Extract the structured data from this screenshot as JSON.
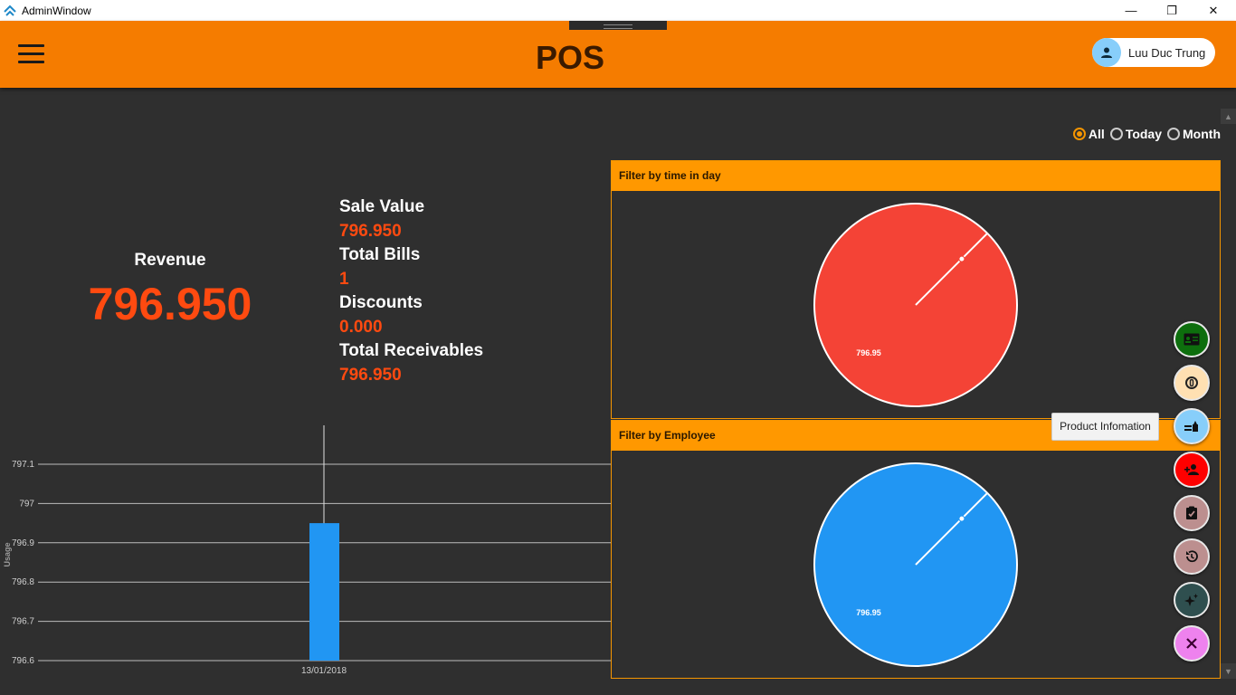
{
  "window": {
    "title": "AdminWindow",
    "minimize": "—",
    "restore": "❐",
    "close": "✕"
  },
  "header": {
    "title": "POS",
    "user_name": "Luu Duc Trung"
  },
  "filter": {
    "options": [
      {
        "label": "All",
        "checked": true
      },
      {
        "label": "Today",
        "checked": false
      },
      {
        "label": "Month",
        "checked": false
      }
    ]
  },
  "revenue": {
    "label": "Revenue",
    "value": "796.950"
  },
  "stats": {
    "sale_value_label": "Sale Value",
    "sale_value": "796.950",
    "total_bills_label": "Total Bills",
    "total_bills": "1",
    "discounts_label": "Discounts",
    "discounts": "0.000",
    "total_receivables_label": "Total Receivables",
    "total_receivables": "796.950"
  },
  "panels": {
    "time_header": "Filter by time in day",
    "employee_header": "Filter by Employee"
  },
  "tooltip": {
    "text": "Product Infomation"
  },
  "fabs": [
    {
      "icon": "id-card-icon",
      "color": "#0d6e0d"
    },
    {
      "icon": "coin-icon",
      "color": "#ffe0b2"
    },
    {
      "icon": "product-icon",
      "color": "#87cefa"
    },
    {
      "icon": "add-user-icon",
      "color": "#ff0000"
    },
    {
      "icon": "checklist-icon",
      "color": "#bc8f8f"
    },
    {
      "icon": "history-icon",
      "color": "#bc8f8f"
    },
    {
      "icon": "sparkle-icon",
      "color": "#2f4f4f"
    },
    {
      "icon": "close-icon",
      "color": "#ee82ee"
    }
  ],
  "chart_data": [
    {
      "type": "bar",
      "categories": [
        "13/01/2018"
      ],
      "values": [
        796.95
      ],
      "ylabel": "Usage",
      "ylim": [
        796.6,
        797.1
      ],
      "yticks": [
        "797.1",
        "797",
        "796.9",
        "796.8",
        "796.7",
        "796.6"
      ],
      "color": "#2196f3",
      "grid": true
    },
    {
      "type": "pie",
      "slices": [
        {
          "label": "796.95",
          "value": 796.95
        }
      ],
      "color": "#f44336"
    },
    {
      "type": "pie",
      "slices": [
        {
          "label": "796.95",
          "value": 796.95
        }
      ],
      "color": "#2196f3"
    }
  ]
}
